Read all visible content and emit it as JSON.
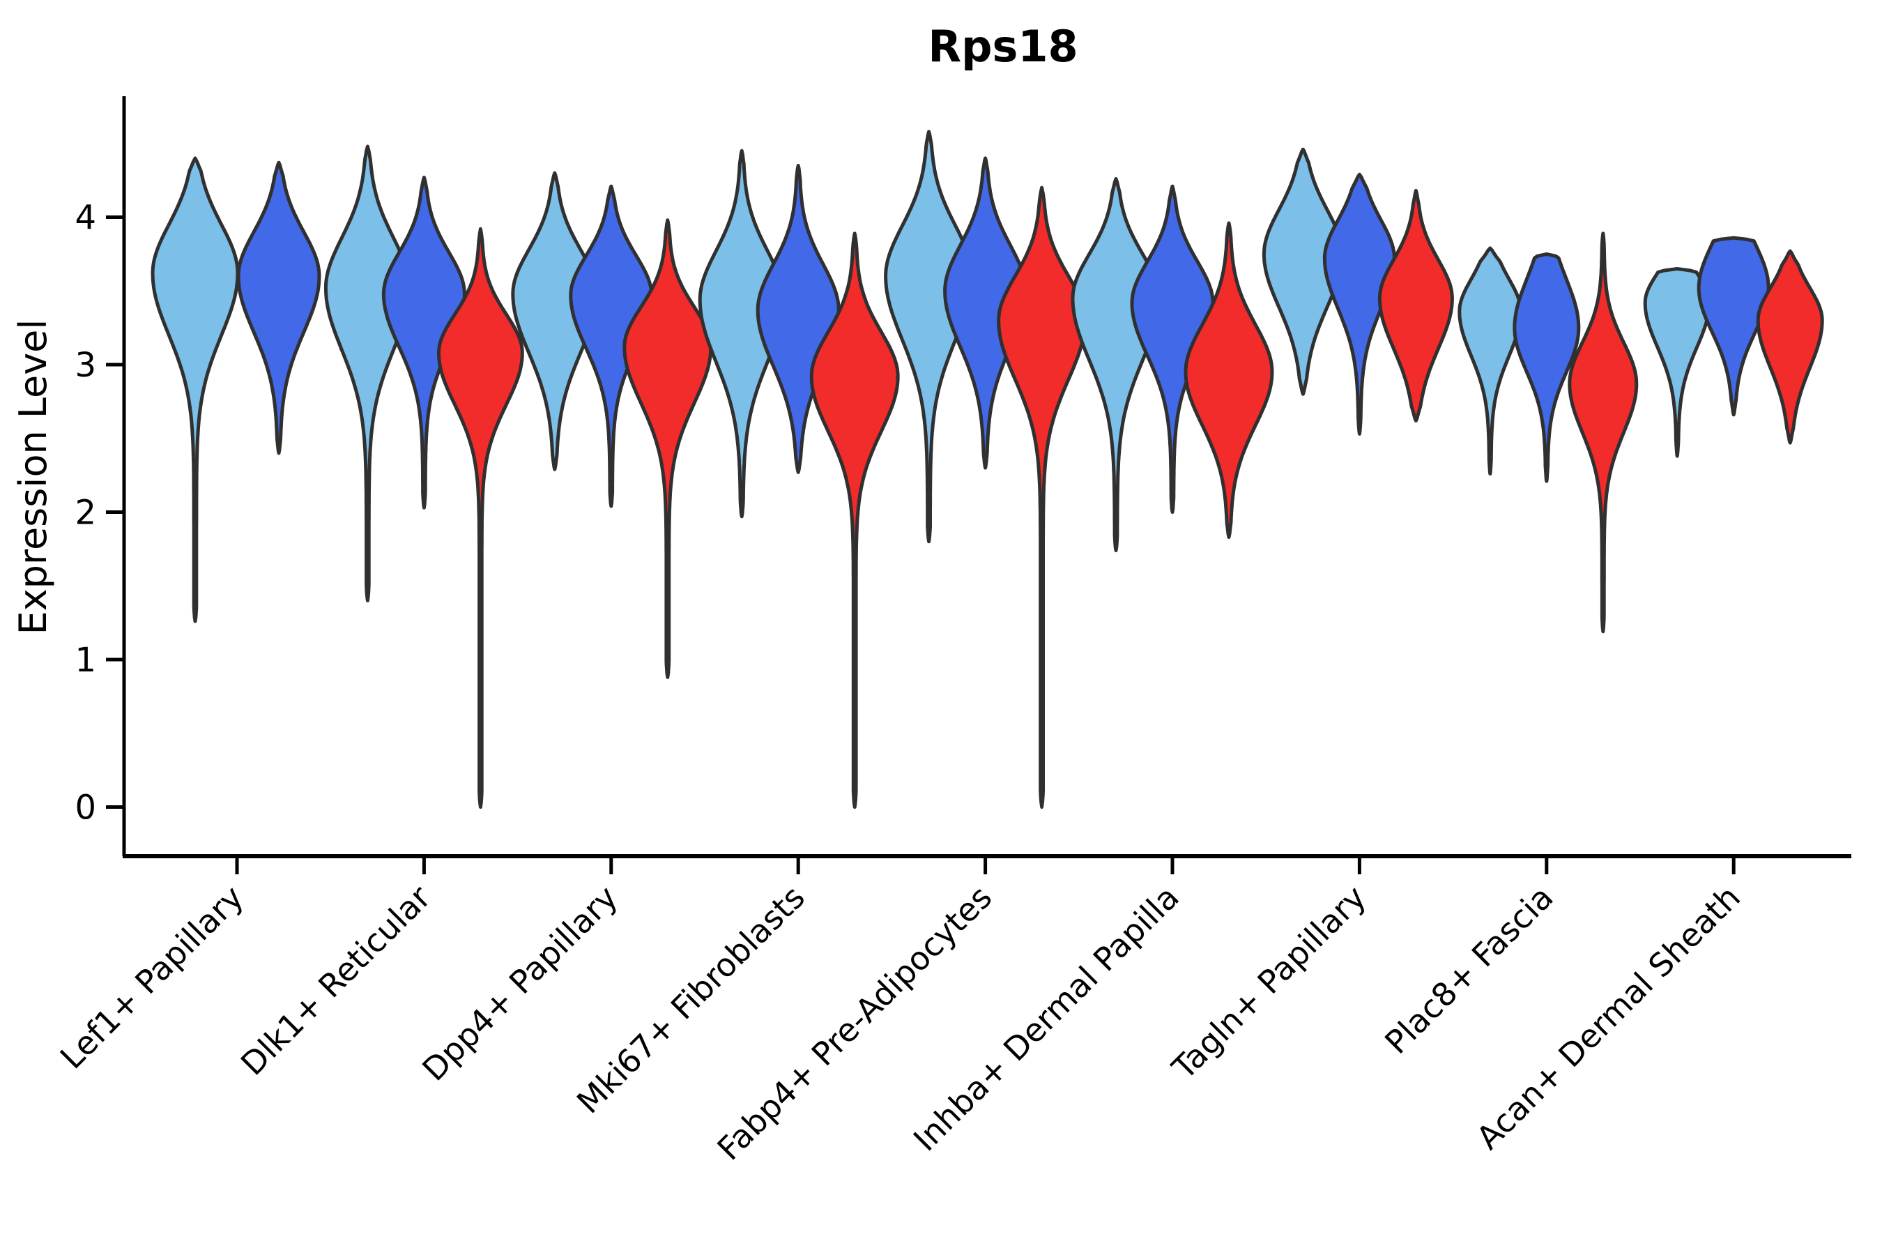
{
  "chart_data": {
    "type": "violin",
    "title": "Rps18",
    "xlabel": "",
    "ylabel": "Expression Level",
    "ytick_labels": [
      "0",
      "1",
      "2",
      "3",
      "4"
    ],
    "ytick_values": [
      0,
      1,
      2,
      3,
      4
    ],
    "ylim": [
      -0.34,
      4.81
    ],
    "grid": false,
    "legend": "none",
    "colors": {
      "light_blue": "#7CBFE9",
      "royal_blue": "#4169E8",
      "red": "#F22B2B",
      "outline": "#303030",
      "axis": "#000000"
    },
    "categories": [
      "Lef1+ Papillary",
      "Dlk1+ Reticular",
      "Dpp4+ Papillary",
      "Mki67+ Fibroblasts",
      "Fabp4+ Pre-Adipocytes",
      "Inhba+ Dermal Papilla",
      "Tagln+ Papillary",
      "Plac8+ Fascia",
      "Acan+ Dermal Sheath"
    ],
    "groups": [
      {
        "label": "Lef1+ Papillary",
        "violins": [
          {
            "series": "light_blue",
            "top": 4.4,
            "bottom": 1.26,
            "mode": 3.62,
            "sigma_up": 0.33,
            "sigma_down": 0.42,
            "halfwidth": 61,
            "cap_top": false
          },
          {
            "series": "royal_blue",
            "top": 4.37,
            "bottom": 2.4,
            "mode": 3.6,
            "sigma_up": 0.3,
            "sigma_down": 0.38,
            "halfwidth": 58,
            "cap_top": false
          }
        ]
      },
      {
        "label": "Dlk1+ Reticular",
        "violins": [
          {
            "series": "light_blue",
            "top": 4.48,
            "bottom": 1.4,
            "mode": 3.52,
            "sigma_up": 0.34,
            "sigma_down": 0.42,
            "halfwidth": 60,
            "cap_top": false
          },
          {
            "series": "royal_blue",
            "top": 4.27,
            "bottom": 2.03,
            "mode": 3.48,
            "sigma_up": 0.28,
            "sigma_down": 0.36,
            "halfwidth": 58,
            "cap_top": false
          },
          {
            "series": "red",
            "top": 3.92,
            "bottom": 0.0,
            "mode": 3.08,
            "sigma_up": 0.26,
            "sigma_down": 0.35,
            "halfwidth": 60,
            "cap_top": false
          }
        ]
      },
      {
        "label": "Dpp4+ Papillary",
        "violins": [
          {
            "series": "light_blue",
            "top": 4.3,
            "bottom": 2.29,
            "mode": 3.48,
            "sigma_up": 0.3,
            "sigma_down": 0.4,
            "halfwidth": 60,
            "cap_top": false
          },
          {
            "series": "royal_blue",
            "top": 4.21,
            "bottom": 2.04,
            "mode": 3.47,
            "sigma_up": 0.27,
            "sigma_down": 0.36,
            "halfwidth": 58,
            "cap_top": false
          },
          {
            "series": "red",
            "top": 3.98,
            "bottom": 0.88,
            "mode": 3.12,
            "sigma_up": 0.27,
            "sigma_down": 0.38,
            "halfwidth": 62,
            "cap_top": false
          }
        ]
      },
      {
        "label": "Mki67+ Fibroblasts",
        "violins": [
          {
            "series": "light_blue",
            "top": 4.45,
            "bottom": 1.97,
            "mode": 3.44,
            "sigma_up": 0.33,
            "sigma_down": 0.42,
            "halfwidth": 60,
            "cap_top": false
          },
          {
            "series": "royal_blue",
            "top": 4.35,
            "bottom": 2.27,
            "mode": 3.37,
            "sigma_up": 0.31,
            "sigma_down": 0.38,
            "halfwidth": 58,
            "cap_top": false
          },
          {
            "series": "red",
            "top": 3.89,
            "bottom": 0.0,
            "mode": 2.92,
            "sigma_up": 0.3,
            "sigma_down": 0.37,
            "halfwidth": 62,
            "cap_top": false
          }
        ]
      },
      {
        "label": "Fabp4+ Pre-Adipocytes",
        "violins": [
          {
            "series": "light_blue",
            "top": 4.58,
            "bottom": 1.8,
            "mode": 3.6,
            "sigma_up": 0.34,
            "sigma_down": 0.43,
            "halfwidth": 62,
            "cap_top": false
          },
          {
            "series": "royal_blue",
            "top": 4.4,
            "bottom": 2.3,
            "mode": 3.5,
            "sigma_up": 0.31,
            "sigma_down": 0.38,
            "halfwidth": 58,
            "cap_top": false
          },
          {
            "series": "red",
            "top": 4.2,
            "bottom": 0.0,
            "mode": 3.3,
            "sigma_up": 0.3,
            "sigma_down": 0.4,
            "halfwidth": 62,
            "cap_top": false
          }
        ]
      },
      {
        "label": "Inhba+ Dermal Papilla",
        "violins": [
          {
            "series": "light_blue",
            "top": 4.26,
            "bottom": 1.74,
            "mode": 3.45,
            "sigma_up": 0.3,
            "sigma_down": 0.42,
            "halfwidth": 62,
            "cap_top": false
          },
          {
            "series": "royal_blue",
            "top": 4.21,
            "bottom": 2.0,
            "mode": 3.42,
            "sigma_up": 0.28,
            "sigma_down": 0.36,
            "halfwidth": 58,
            "cap_top": false
          },
          {
            "series": "red",
            "top": 3.96,
            "bottom": 1.83,
            "mode": 2.95,
            "sigma_up": 0.32,
            "sigma_down": 0.36,
            "halfwidth": 62,
            "cap_top": false
          }
        ]
      },
      {
        "label": "Tagln+ Papillary",
        "violins": [
          {
            "series": "light_blue",
            "top": 4.46,
            "bottom": 2.8,
            "mode": 3.75,
            "sigma_up": 0.3,
            "sigma_down": 0.36,
            "halfwidth": 56,
            "cap_top": false
          },
          {
            "series": "royal_blue",
            "top": 4.29,
            "bottom": 2.53,
            "mode": 3.72,
            "sigma_up": 0.26,
            "sigma_down": 0.34,
            "halfwidth": 50,
            "cap_top": false
          },
          {
            "series": "red",
            "top": 4.18,
            "bottom": 2.62,
            "mode": 3.45,
            "sigma_up": 0.26,
            "sigma_down": 0.34,
            "halfwidth": 52,
            "cap_top": false
          }
        ]
      },
      {
        "label": "Plac8+ Fascia",
        "violins": [
          {
            "series": "light_blue",
            "top": 3.79,
            "bottom": 2.26,
            "mode": 3.36,
            "sigma_up": 0.22,
            "sigma_down": 0.3,
            "halfwidth": 44,
            "cap_top": false
          },
          {
            "series": "royal_blue",
            "top": 3.75,
            "bottom": 2.21,
            "mode": 3.25,
            "sigma_up": 0.33,
            "sigma_down": 0.3,
            "halfwidth": 46,
            "cap_top": true
          },
          {
            "series": "red",
            "top": 3.89,
            "bottom": 1.19,
            "mode": 2.87,
            "sigma_up": 0.28,
            "sigma_down": 0.33,
            "halfwidth": 48,
            "cap_top": false
          }
        ]
      },
      {
        "label": "Acan+ Dermal Sheath",
        "violins": [
          {
            "series": "light_blue",
            "top": 3.65,
            "bottom": 2.38,
            "mode": 3.42,
            "sigma_up": 0.2,
            "sigma_down": 0.3,
            "halfwidth": 46,
            "cap_top": true
          },
          {
            "series": "royal_blue",
            "top": 3.86,
            "bottom": 2.66,
            "mode": 3.52,
            "sigma_up": 0.3,
            "sigma_down": 0.3,
            "halfwidth": 50,
            "cap_top": true
          },
          {
            "series": "red",
            "top": 3.77,
            "bottom": 2.47,
            "mode": 3.3,
            "sigma_up": 0.22,
            "sigma_down": 0.32,
            "halfwidth": 46,
            "cap_top": false
          }
        ]
      }
    ]
  }
}
